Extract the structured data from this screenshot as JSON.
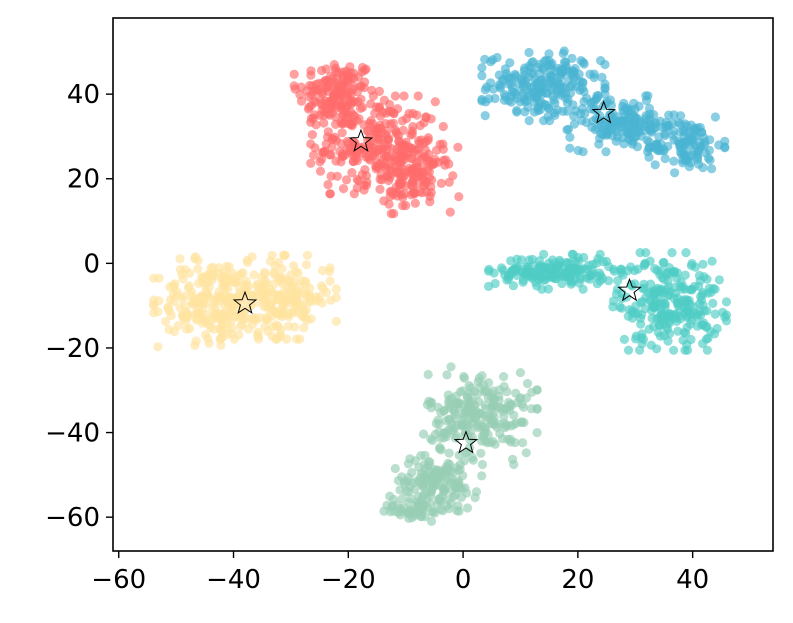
{
  "chart_data": {
    "type": "scatter",
    "title": "",
    "xlabel": "",
    "ylabel": "",
    "xlim": [
      -61,
      54
    ],
    "ylim": [
      -68,
      58
    ],
    "xticks": [
      -60,
      -40,
      -20,
      0,
      20,
      40
    ],
    "yticks": [
      -60,
      -40,
      -20,
      0,
      20,
      40
    ],
    "xtick_labels": [
      "−60",
      "−40",
      "−20",
      "0",
      "20",
      "40"
    ],
    "ytick_labels": [
      "−60",
      "−40",
      "−20",
      "0",
      "20",
      "40"
    ],
    "grid": false,
    "legend": "none",
    "point_alpha": 0.65,
    "clusters": [
      {
        "color": "#ff6b6b",
        "centroid": [
          -17.8,
          28.8
        ],
        "shape": [
          {
            "center": [
              -22,
              40
            ],
            "spread": [
              4.5,
              5.5
            ],
            "count": 150
          },
          {
            "center": [
              -15,
              28
            ],
            "spread": [
              7,
              7
            ],
            "count": 240
          },
          {
            "center": [
              -9,
              20
            ],
            "spread": [
              5,
              5
            ],
            "count": 120
          }
        ]
      },
      {
        "color": "#4ab4d2",
        "centroid": [
          24.5,
          35.5
        ],
        "shape": [
          {
            "center": [
              14,
              42
            ],
            "spread": [
              6.5,
              5
            ],
            "count": 220
          },
          {
            "center": [
              28,
              33
            ],
            "spread": [
              6,
              4
            ],
            "count": 160
          },
          {
            "center": [
              39,
              28
            ],
            "spread": [
              4,
              4
            ],
            "count": 100
          }
        ]
      },
      {
        "color": "#ffe49f",
        "centroid": [
          -38,
          -9.5
        ],
        "shape": [
          {
            "center": [
              -44,
              -9
            ],
            "spread": [
              6,
              6.5
            ],
            "count": 200
          },
          {
            "center": [
              -32,
              -8
            ],
            "spread": [
              6,
              6
            ],
            "count": 210
          }
        ]
      },
      {
        "color": "#4ecdc4",
        "centroid": [
          29,
          -6.5
        ],
        "shape": [
          {
            "center": [
              16,
              -2
            ],
            "spread": [
              7,
              2.5
            ],
            "count": 180
          },
          {
            "center": [
              36,
              -9
            ],
            "spread": [
              6,
              7
            ],
            "count": 240
          }
        ]
      },
      {
        "color": "#96ceb4",
        "centroid": [
          0.5,
          -42.5
        ],
        "shape": [
          {
            "center": [
              3,
              -36
            ],
            "spread": [
              6,
              7
            ],
            "count": 230
          },
          {
            "center": [
              -5,
              -52
            ],
            "spread": [
              5,
              4
            ],
            "count": 130
          },
          {
            "center": [
              -8,
              -58
            ],
            "spread": [
              3.5,
              2
            ],
            "count": 50
          }
        ]
      }
    ]
  }
}
